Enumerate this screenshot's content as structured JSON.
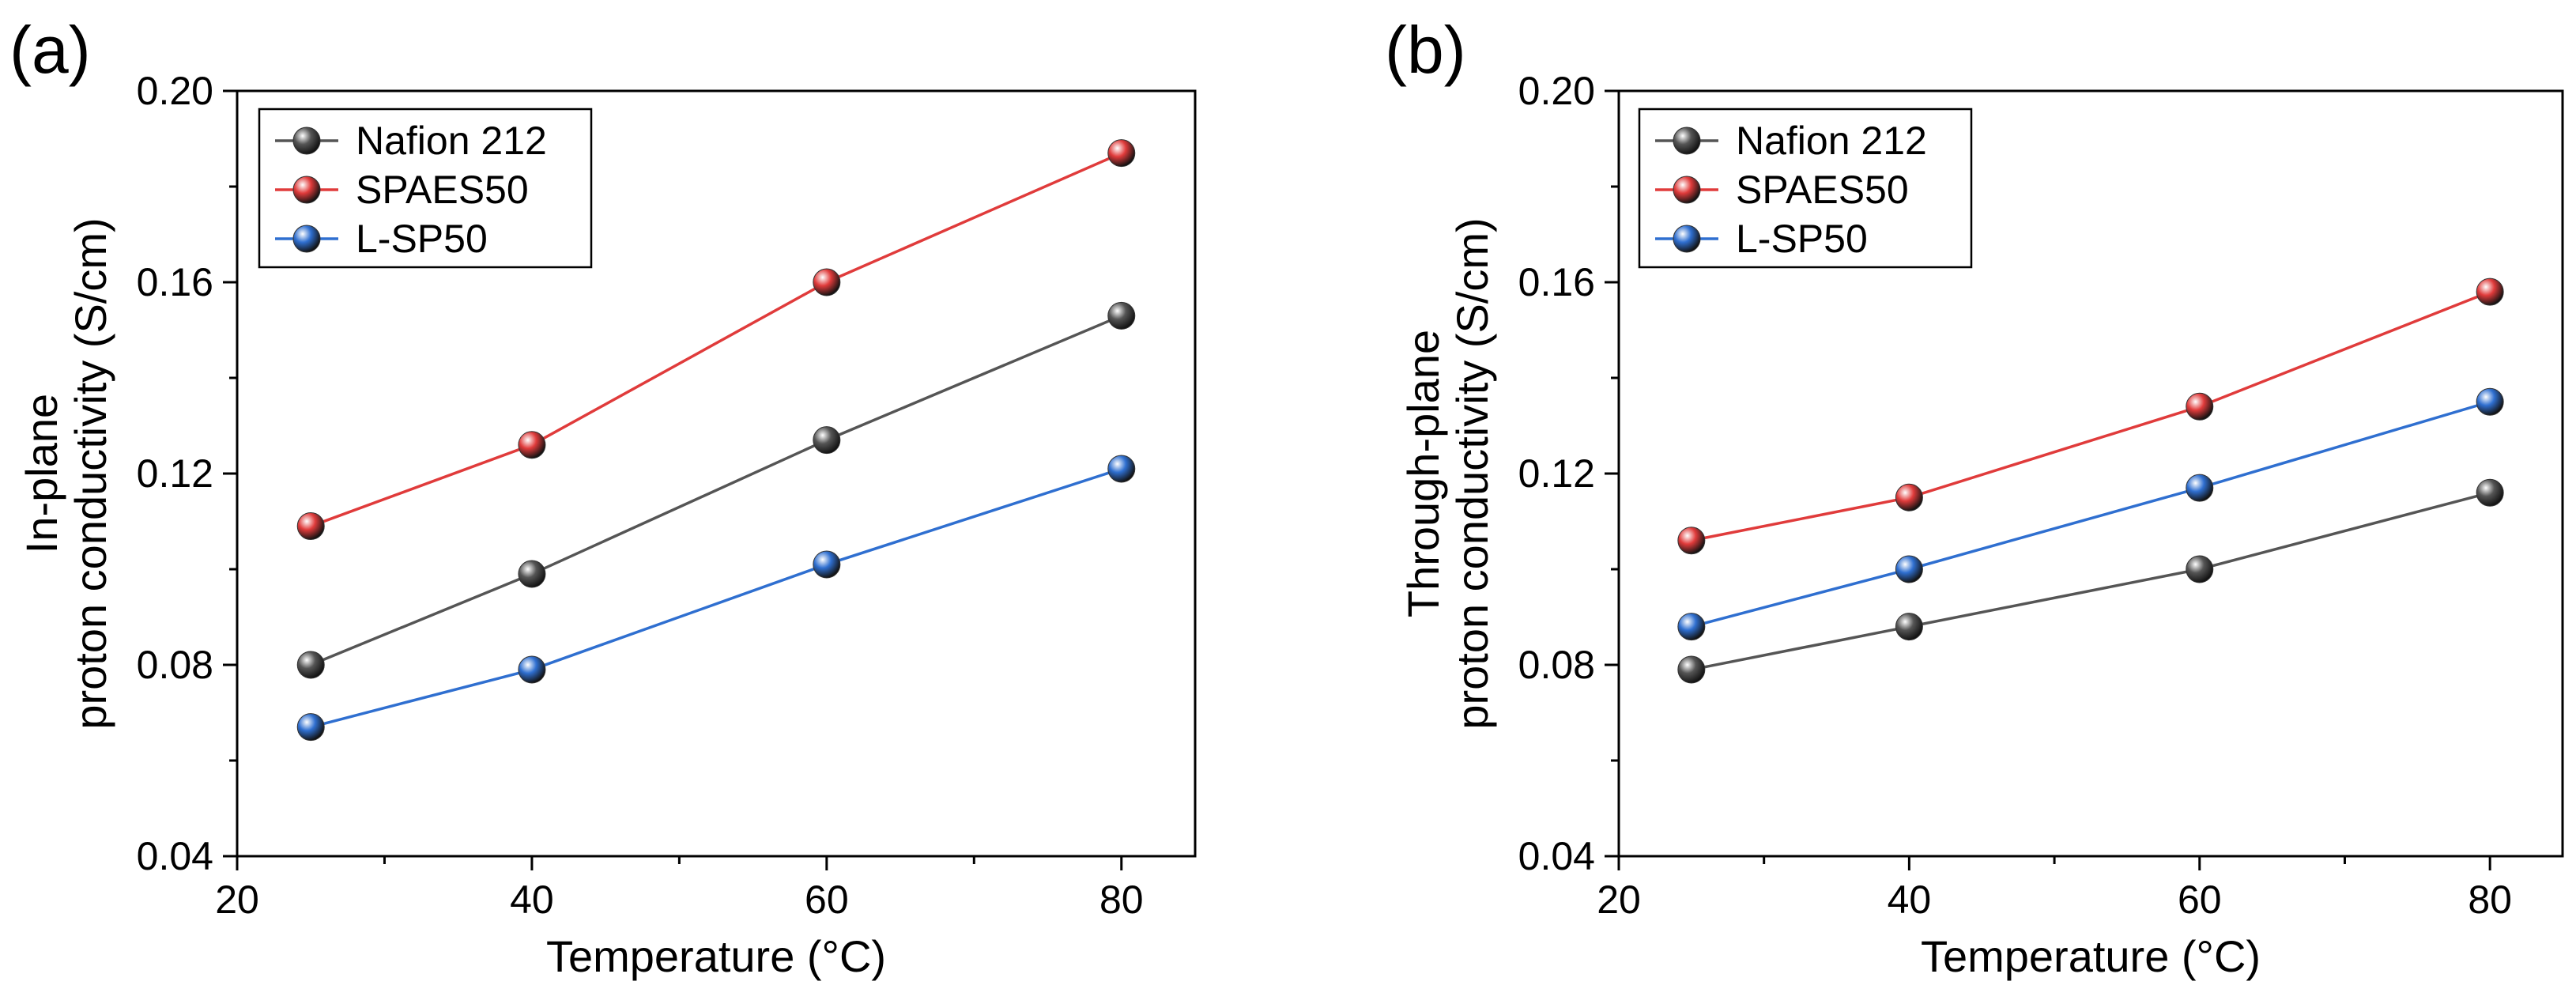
{
  "chart_data": [
    {
      "panel": "(a)",
      "type": "line",
      "x": [
        25,
        40,
        60,
        80
      ],
      "xlim": [
        20,
        85
      ],
      "ylim": [
        0.04,
        0.2
      ],
      "xticks": [
        20,
        40,
        60,
        80
      ],
      "xtick_labels": [
        "20",
        "40",
        "60",
        "80"
      ],
      "yticks": [
        0.04,
        0.08,
        0.12,
        0.16,
        0.2
      ],
      "ytick_labels": [
        "0.04",
        "0.08",
        "0.12",
        "0.16",
        "0.20"
      ],
      "xlabel": "Temperature (°C)",
      "ylabel_lines": [
        "In-plane",
        "proton conductivity (S/cm)"
      ],
      "legend_position": "top-left",
      "grid": false,
      "series": [
        {
          "name": "Nafion 212",
          "color": "#555555",
          "values": [
            0.08,
            0.099,
            0.127,
            0.153
          ]
        },
        {
          "name": "SPAES50",
          "color": "#e03b3b",
          "values": [
            0.109,
            0.126,
            0.16,
            0.187
          ]
        },
        {
          "name": "L-SP50",
          "color": "#2f6fd0",
          "values": [
            0.067,
            0.079,
            0.101,
            0.121
          ]
        }
      ]
    },
    {
      "panel": "(b)",
      "type": "line",
      "x": [
        25,
        40,
        60,
        80
      ],
      "xlim": [
        20,
        85
      ],
      "ylim": [
        0.04,
        0.2
      ],
      "xticks": [
        20,
        40,
        60,
        80
      ],
      "xtick_labels": [
        "20",
        "40",
        "60",
        "80"
      ],
      "yticks": [
        0.04,
        0.08,
        0.12,
        0.16,
        0.2
      ],
      "ytick_labels": [
        "0.04",
        "0.08",
        "0.12",
        "0.16",
        "0.20"
      ],
      "xlabel": "Temperature (°C)",
      "ylabel_lines": [
        "Through-plane",
        "proton conductivity (S/cm)"
      ],
      "legend_position": "top-left",
      "grid": false,
      "series": [
        {
          "name": "Nafion 212",
          "color": "#555555",
          "values": [
            0.079,
            0.088,
            0.1,
            0.116
          ]
        },
        {
          "name": "SPAES50",
          "color": "#e03b3b",
          "values": [
            0.106,
            0.115,
            0.134,
            0.158
          ]
        },
        {
          "name": "L-SP50",
          "color": "#2f6fd0",
          "values": [
            0.088,
            0.1,
            0.117,
            0.135
          ]
        }
      ]
    }
  ]
}
